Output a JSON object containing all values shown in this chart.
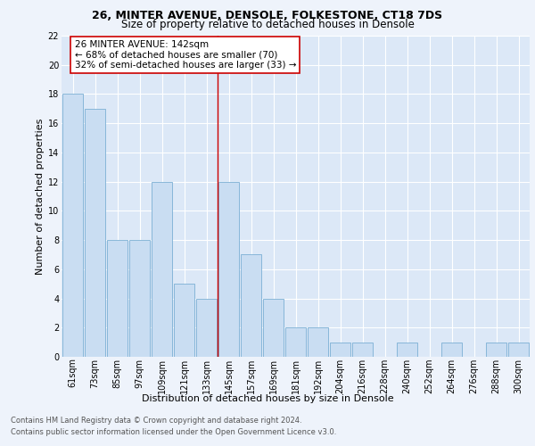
{
  "title1": "26, MINTER AVENUE, DENSOLE, FOLKESTONE, CT18 7DS",
  "title2": "Size of property relative to detached houses in Densole",
  "xlabel": "Distribution of detached houses by size in Densole",
  "ylabel": "Number of detached properties",
  "categories": [
    "61sqm",
    "73sqm",
    "85sqm",
    "97sqm",
    "109sqm",
    "121sqm",
    "133sqm",
    "145sqm",
    "157sqm",
    "169sqm",
    "181sqm",
    "192sqm",
    "204sqm",
    "216sqm",
    "228sqm",
    "240sqm",
    "252sqm",
    "264sqm",
    "276sqm",
    "288sqm",
    "300sqm"
  ],
  "values": [
    18,
    17,
    8,
    8,
    12,
    5,
    4,
    12,
    7,
    4,
    2,
    2,
    1,
    1,
    0,
    1,
    0,
    1,
    0,
    1,
    1
  ],
  "bar_color": "#c9ddf2",
  "bar_edge_color": "#7bafd4",
  "marker_color": "#cc0000",
  "vline_index": 7,
  "annotation_line1": "26 MINTER AVENUE: 142sqm",
  "annotation_line2": "← 68% of detached houses are smaller (70)",
  "annotation_line3": "32% of semi-detached houses are larger (33) →",
  "ylim": [
    0,
    22
  ],
  "yticks": [
    0,
    2,
    4,
    6,
    8,
    10,
    12,
    14,
    16,
    18,
    20,
    22
  ],
  "footnote1": "Contains HM Land Registry data © Crown copyright and database right 2024.",
  "footnote2": "Contains public sector information licensed under the Open Government Licence v3.0.",
  "fig_bg_color": "#eef3fb",
  "plot_bg_color": "#dce8f7",
  "grid_color": "#ffffff",
  "title1_fontsize": 9,
  "title2_fontsize": 8.5,
  "axis_label_fontsize": 8,
  "tick_fontsize": 7,
  "footnote_fontsize": 6,
  "annotation_fontsize": 7.5
}
